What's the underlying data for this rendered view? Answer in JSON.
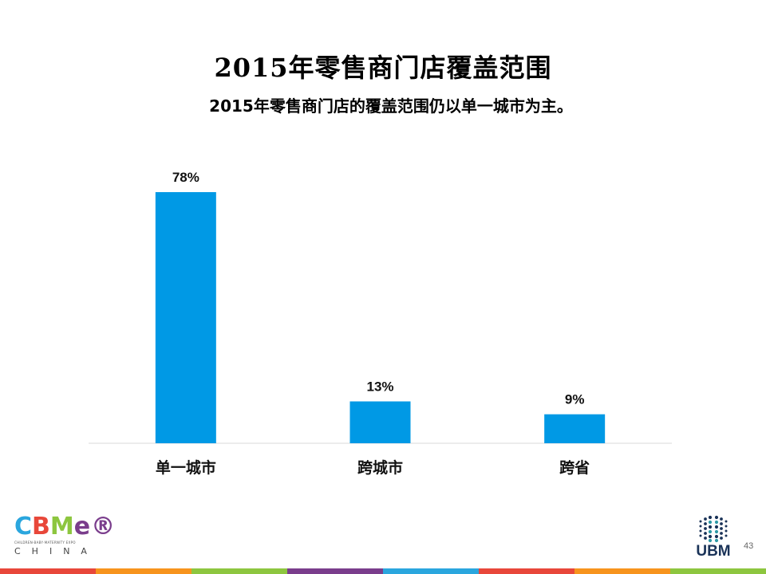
{
  "slide": {
    "title": "2015年零售商门店覆盖范围",
    "subtitle": "2015年零售商门店的覆盖范围仍以单一城市为主。",
    "page_number": "43"
  },
  "chart_data": {
    "type": "bar",
    "categories": [
      "单一城市",
      "跨城市",
      "跨省"
    ],
    "values": [
      78,
      13,
      9
    ],
    "value_labels": [
      "78%",
      "13%",
      "9%"
    ],
    "unit": "%",
    "ylim": [
      0,
      78
    ],
    "grid": false,
    "legend": "none",
    "bar_color": "#0099E5",
    "axis_color": "#D9D9D9"
  },
  "logos": {
    "cbme": {
      "letters": [
        "C",
        "B",
        "M",
        "e"
      ],
      "letter_colors": [
        "#2AA6DE",
        "#E8473A",
        "#8DC63F",
        "#7A3D8C"
      ],
      "registered": "®",
      "tagline": "CHILDREN·BABY·MATERNITY EXPO",
      "region": "CHINA"
    },
    "ubm": {
      "text": "UBM",
      "mark": "ubm-dots-icon",
      "colors": [
        "#1A3358",
        "#2E9AA6"
      ]
    }
  },
  "footer_strip_colors": [
    "#E8473A",
    "#F7941D",
    "#8DC63F",
    "#7A3D8C",
    "#2AA6DE",
    "#E8473A",
    "#F7941D",
    "#8DC63F"
  ]
}
